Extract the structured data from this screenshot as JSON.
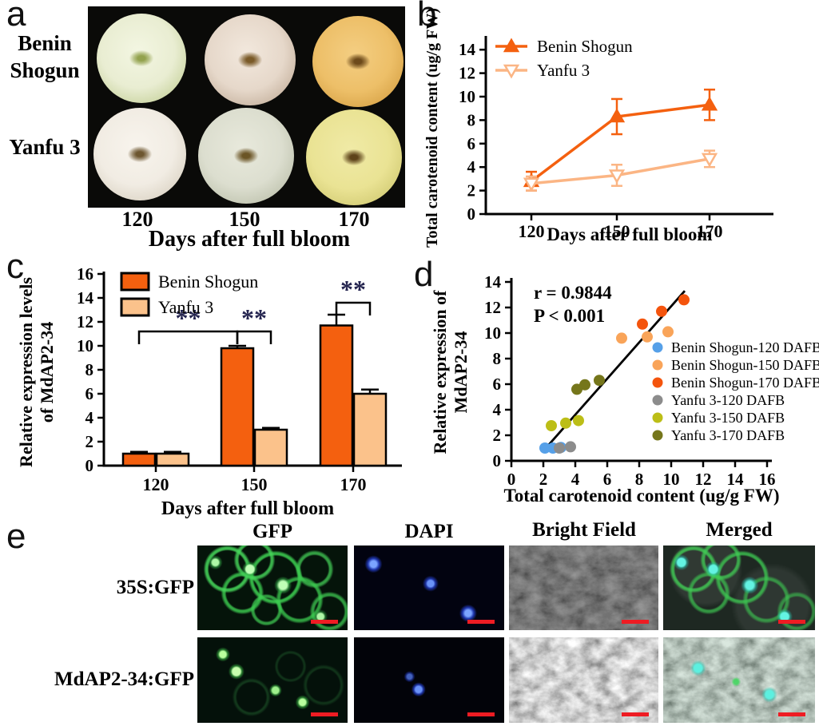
{
  "panel_labels": {
    "a": "a",
    "b": "b",
    "c": "c",
    "d": "d",
    "e": "e"
  },
  "panel_a": {
    "rows": [
      {
        "lines": [
          "Benin",
          "Shogun"
        ]
      },
      {
        "lines": [
          "Yanfu 3"
        ]
      }
    ],
    "x_ticks": [
      "120",
      "150",
      "170"
    ],
    "x_title": "Days after full bloom",
    "apples": [
      {
        "variety": "Benin Shogun",
        "dafb": "120",
        "light": "#f3f6e2",
        "base": "#e9edd2",
        "edge": "#c7d29c",
        "core": "#93a24e"
      },
      {
        "variety": "Benin Shogun",
        "dafb": "150",
        "light": "#f2e8dd",
        "base": "#e6d8ca",
        "edge": "#c4b09c",
        "core": "#7a5a28"
      },
      {
        "variety": "Benin Shogun",
        "dafb": "170",
        "light": "#f4ce82",
        "base": "#edbf68",
        "edge": "#d7a246",
        "core": "#6d4a1a"
      },
      {
        "variety": "Yanfu 3",
        "dafb": "120",
        "light": "#f8f4ed",
        "base": "#f1ece3",
        "edge": "#dad2c3",
        "core": "#6d5630"
      },
      {
        "variety": "Yanfu 3",
        "dafb": "150",
        "light": "#e8e9dc",
        "base": "#dcdecf",
        "edge": "#bdc1ac",
        "core": "#6b5526"
      },
      {
        "variety": "Yanfu 3",
        "dafb": "170",
        "light": "#f0eaa6",
        "base": "#eae394",
        "edge": "#d1ca72",
        "core": "#5e431a"
      }
    ]
  },
  "chart_data": [
    {
      "id": "b",
      "type": "line",
      "xlabel": "Days after full bloom",
      "ylabel": "Total carotenoid content (ug/g FW)",
      "categories": [
        "120",
        "150",
        "170"
      ],
      "ylim": [
        0,
        14
      ],
      "ytick_step": 2,
      "grid": false,
      "legend_position": "top-left",
      "series": [
        {
          "name": "Benin Shogun",
          "values": [
            2.8,
            8.3,
            9.3
          ],
          "errors": [
            0.8,
            1.5,
            1.3
          ],
          "color": "#F4600F",
          "marker": "triangle-up",
          "marker_fill": "solid"
        },
        {
          "name": "Yanfu 3",
          "values": [
            2.6,
            3.3,
            4.7
          ],
          "errors": [
            0.6,
            0.9,
            0.7
          ],
          "color": "#FBB584",
          "marker": "triangle-down",
          "marker_fill": "open"
        }
      ]
    },
    {
      "id": "c",
      "type": "bar",
      "xlabel": "Days after full bloom",
      "ylabel_lines": [
        "Relative expression levels",
        "of MdAP2-34"
      ],
      "categories": [
        "120",
        "150",
        "170"
      ],
      "ylim": [
        0,
        16
      ],
      "ytick_step": 2,
      "grid": false,
      "legend_position": "top-left",
      "series": [
        {
          "name": "Benin Shogun",
          "values": [
            1.0,
            9.8,
            11.7
          ],
          "errors": [
            0.15,
            0.2,
            0.9
          ],
          "color": "#F4600F"
        },
        {
          "name": "Yanfu 3",
          "values": [
            1.0,
            3.0,
            6.0
          ],
          "errors": [
            0.15,
            0.15,
            0.35
          ],
          "color": "#FBC28B"
        }
      ],
      "significance": [
        {
          "label": "**",
          "from_group": 0,
          "from_series": 0,
          "to_group": 1,
          "to_series": 0,
          "y": 11.2
        },
        {
          "label": "**",
          "from_group": 1,
          "from_series": 0,
          "to_group": 1,
          "to_series": 1,
          "y": 11.2
        },
        {
          "label": "**",
          "from_group": 2,
          "from_series": 0,
          "to_group": 2,
          "to_series": 1,
          "y": 13.6
        }
      ],
      "significance_color": "#252550"
    },
    {
      "id": "d",
      "type": "scatter",
      "xlabel": "Total carotenoid content (ug/g FW)",
      "ylabel_lines": [
        "Relative expression of",
        "MdAP2-34"
      ],
      "xlim": [
        0,
        16
      ],
      "xtick_step": 2,
      "ylim": [
        0,
        14
      ],
      "ytick_step": 2,
      "grid": false,
      "legend_position": "right",
      "annotation": [
        "r = 0.9844",
        "P < 0.001"
      ],
      "trend_line": {
        "x1": 2.05,
        "y1": 0.85,
        "x2": 10.85,
        "y2": 13.3,
        "color": "#000000"
      },
      "series": [
        {
          "name": "Benin Shogun-120 DAFB",
          "color": "#56A0E8",
          "points": [
            [
              2.1,
              1.0
            ],
            [
              2.6,
              1.0
            ],
            [
              3.1,
              1.05
            ]
          ]
        },
        {
          "name": "Benin Shogun-150 DAFB",
          "color": "#F9A459",
          "points": [
            [
              6.9,
              9.6
            ],
            [
              8.5,
              9.7
            ],
            [
              9.8,
              10.1
            ]
          ]
        },
        {
          "name": "Benin Shogun-170 DAFB",
          "color": "#F4540D",
          "points": [
            [
              8.2,
              10.7
            ],
            [
              9.4,
              11.7
            ],
            [
              10.8,
              12.6
            ]
          ]
        },
        {
          "name": "Yanfu 3-120 DAFB",
          "color": "#8C8C8C",
          "points": [
            [
              3.0,
              1.0
            ],
            [
              3.7,
              1.1
            ]
          ]
        },
        {
          "name": "Yanfu 3-150 DAFB",
          "color": "#BCBE17",
          "points": [
            [
              2.5,
              2.75
            ],
            [
              3.4,
              2.95
            ],
            [
              4.2,
              3.15
            ]
          ]
        },
        {
          "name": "Yanfu 3-170 DAFB",
          "color": "#75761B",
          "points": [
            [
              4.1,
              5.6
            ],
            [
              4.6,
              5.95
            ],
            [
              5.5,
              6.3
            ]
          ]
        }
      ]
    }
  ],
  "panel_e": {
    "column_headers": [
      "GFP",
      "DAPI",
      "Bright Field",
      "Merged"
    ],
    "rows": [
      {
        "label": "35S:GFP",
        "cells": [
          "gfp-network",
          "dapi-three",
          "bf-dark",
          "merged-network"
        ]
      },
      {
        "label": "MdAP2-34:GFP",
        "cells": [
          "gfp-dots",
          "dapi-two",
          "bf-bright",
          "merged-bright"
        ]
      }
    ],
    "scale_bar_color": "#ee1c23"
  }
}
